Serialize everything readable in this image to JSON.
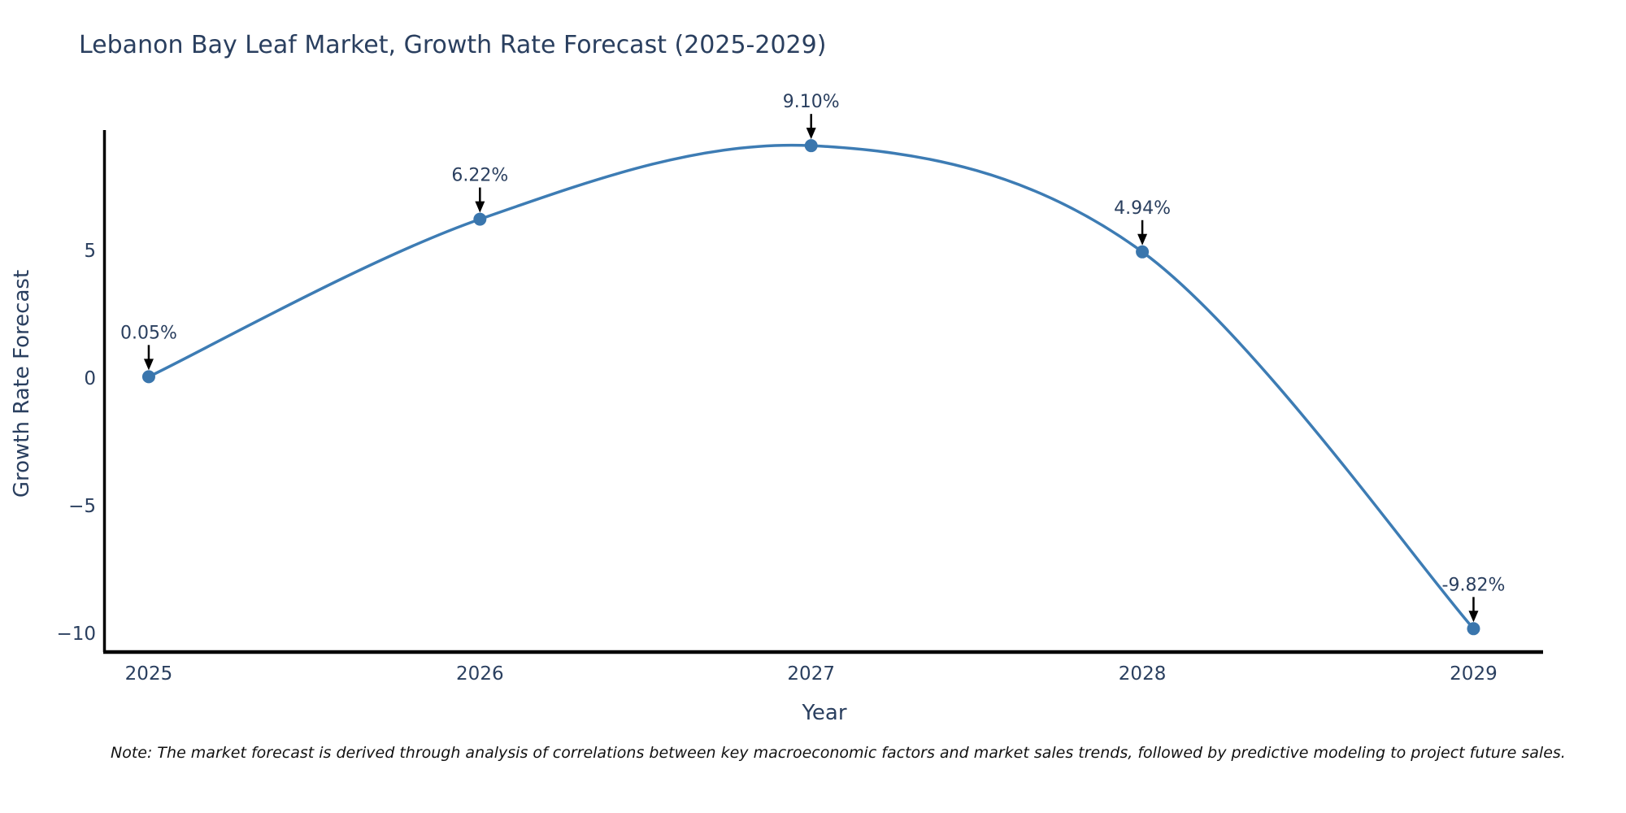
{
  "chart_data": {
    "type": "line",
    "title": "Lebanon Bay Leaf Market, Growth Rate Forecast (2025-2029)",
    "xlabel": "Year",
    "ylabel": "Growth Rate Forecast",
    "x": [
      2025,
      2026,
      2027,
      2028,
      2029
    ],
    "y": [
      0.05,
      6.22,
      9.1,
      4.94,
      -9.82
    ],
    "point_labels": [
      "0.05%",
      "6.22%",
      "9.10%",
      "4.94%",
      "-9.82%"
    ],
    "x_tick_labels": [
      "2025",
      "2026",
      "2027",
      "2028",
      "2029"
    ],
    "y_ticks": [
      {
        "value": 5,
        "label": "5"
      },
      {
        "value": 0,
        "label": "0"
      },
      {
        "value": -5,
        "label": "−5"
      },
      {
        "value": -10,
        "label": "−10"
      }
    ],
    "x_range": [
      2024.87,
      2029.21
    ],
    "y_range": [
      -10.67,
      9.71
    ],
    "line_shape": "spline",
    "grid": false,
    "legend": "none",
    "line_color": "#3d7cb4",
    "marker_color": "#3a76ad",
    "axis_line_color": "#000000",
    "annotation_arrow_color": "#000000",
    "text_color": "#2a3f5f",
    "note": "Note: The market forecast is derived through analysis of correlations between key macroeconomic factors and market sales trends, followed by predictive modeling to project future sales."
  }
}
